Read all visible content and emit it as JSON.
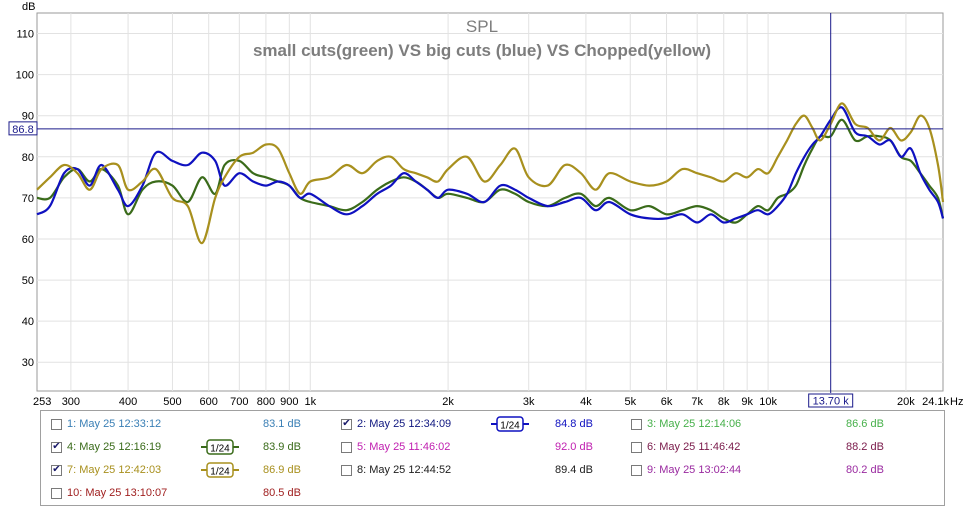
{
  "chart_data": {
    "type": "line",
    "title": "SPL",
    "subtitle": "small cuts(green) VS big cuts (blue) VS Chopped(yellow)",
    "ylabel": "dB",
    "xunit": "Hz",
    "xscale": "log",
    "xlim": [
      253,
      24100
    ],
    "ylim": [
      23,
      115
    ],
    "yticks": [
      "30",
      "40",
      "50",
      "60",
      "70",
      "80",
      "90",
      "100",
      "110"
    ],
    "yticks_values": [
      30,
      40,
      50,
      60,
      70,
      80,
      90,
      100,
      110
    ],
    "xticks": [
      {
        "v": 253,
        "l": "253"
      },
      {
        "v": 300,
        "l": "300"
      },
      {
        "v": 400,
        "l": "400"
      },
      {
        "v": 500,
        "l": "500"
      },
      {
        "v": 600,
        "l": "600"
      },
      {
        "v": 700,
        "l": "700"
      },
      {
        "v": 800,
        "l": "800"
      },
      {
        "v": 900,
        "l": "900"
      },
      {
        "v": 1000,
        "l": "1k"
      },
      {
        "v": 2000,
        "l": "2k"
      },
      {
        "v": 3000,
        "l": "3k"
      },
      {
        "v": 4000,
        "l": "4k"
      },
      {
        "v": 5000,
        "l": "5k"
      },
      {
        "v": 6000,
        "l": "6k"
      },
      {
        "v": 7000,
        "l": "7k"
      },
      {
        "v": 8000,
        "l": "8k"
      },
      {
        "v": 9000,
        "l": "9k"
      },
      {
        "v": 10000,
        "l": "10k"
      },
      {
        "v": 20000,
        "l": "20k"
      },
      {
        "v": 24100,
        "l": "24.1k"
      }
    ],
    "cursor": {
      "x": 13700,
      "x_label": "13.70 k",
      "y": 86.8,
      "y_label": "86.8"
    },
    "grid": true,
    "series": [
      {
        "name": "4: May 25 12:16:19",
        "color": "#3a6b1a",
        "x": [
          253,
          270,
          290,
          310,
          330,
          350,
          380,
          400,
          430,
          460,
          500,
          540,
          580,
          620,
          650,
          700,
          750,
          800,
          850,
          900,
          950,
          1000,
          1100,
          1200,
          1300,
          1400,
          1500,
          1600,
          1700,
          1800,
          1900,
          2000,
          2200,
          2400,
          2600,
          2800,
          3000,
          3300,
          3600,
          3900,
          4200,
          4500,
          5000,
          5500,
          6000,
          6500,
          7000,
          7500,
          8000,
          8500,
          9000,
          9500,
          10000,
          10500,
          11000,
          11500,
          12000,
          12500,
          13000,
          13700,
          14500,
          15500,
          16500,
          17500,
          18500,
          19500,
          20500,
          21500,
          22500,
          23500,
          24100
        ],
        "y": [
          70,
          70,
          75,
          77,
          74,
          77,
          73,
          66,
          72,
          74,
          73,
          69,
          75,
          71,
          78,
          79,
          76,
          75,
          74,
          73,
          70,
          69,
          68,
          67,
          69,
          72,
          74,
          75,
          74,
          72,
          70,
          71,
          70,
          69,
          72,
          71,
          69,
          68,
          70,
          71,
          68,
          70,
          67,
          68,
          66,
          67,
          68,
          67,
          65,
          64,
          66,
          68,
          67,
          70,
          71,
          73,
          78,
          82,
          85,
          85,
          89,
          84,
          85,
          85,
          84,
          80,
          79,
          76,
          73,
          70,
          65
        ],
        "smooth": "1/24"
      },
      {
        "name": "2: May 25 12:34:09",
        "color": "#0f11c0",
        "x": [
          253,
          270,
          290,
          310,
          330,
          350,
          380,
          400,
          430,
          460,
          500,
          540,
          580,
          620,
          650,
          700,
          750,
          800,
          850,
          900,
          950,
          1000,
          1100,
          1200,
          1300,
          1400,
          1500,
          1600,
          1700,
          1800,
          1900,
          2000,
          2200,
          2400,
          2600,
          2800,
          3000,
          3300,
          3600,
          3900,
          4200,
          4500,
          5000,
          5500,
          6000,
          6500,
          7000,
          7500,
          8000,
          8500,
          9000,
          9500,
          10000,
          10500,
          11000,
          11500,
          12000,
          12500,
          13000,
          13700,
          14500,
          15500,
          16500,
          17500,
          18500,
          19500,
          20500,
          21500,
          22500,
          23500,
          24100
        ],
        "y": [
          66,
          68,
          76,
          77,
          73,
          78,
          72,
          68,
          73,
          81,
          79,
          78,
          81,
          79,
          73,
          76,
          74,
          73,
          74,
          73,
          70,
          71,
          68,
          66,
          68,
          71,
          73,
          76,
          74,
          72,
          70,
          72,
          71,
          69,
          73,
          72,
          70,
          68,
          69,
          70,
          67,
          69,
          66,
          65,
          65,
          66,
          64,
          66,
          64,
          65,
          66,
          67,
          66,
          68,
          71,
          76,
          80,
          83,
          85,
          89,
          92,
          86,
          85,
          83,
          84,
          80,
          82,
          76,
          72,
          69,
          65
        ],
        "smooth": "1/24"
      },
      {
        "name": "7: May 25 12:42:03",
        "color": "#a8901e",
        "x": [
          253,
          270,
          290,
          310,
          330,
          350,
          380,
          400,
          430,
          460,
          500,
          540,
          580,
          620,
          650,
          700,
          750,
          800,
          850,
          900,
          950,
          1000,
          1100,
          1200,
          1300,
          1400,
          1500,
          1600,
          1700,
          1800,
          1900,
          2000,
          2200,
          2400,
          2600,
          2800,
          3000,
          3300,
          3600,
          3900,
          4200,
          4500,
          5000,
          5500,
          6000,
          6500,
          7000,
          7500,
          8000,
          8500,
          9000,
          9500,
          10000,
          10500,
          11000,
          11500,
          12000,
          12500,
          13000,
          13700,
          14500,
          15500,
          16500,
          17500,
          18500,
          19500,
          20500,
          21500,
          22500,
          23500,
          24100
        ],
        "y": [
          72,
          75,
          78,
          76,
          72,
          77,
          78,
          72,
          74,
          77,
          70,
          68,
          59,
          70,
          75,
          80,
          81,
          83,
          82,
          76,
          71,
          74,
          75,
          78,
          76,
          79,
          80,
          77,
          76,
          75,
          74,
          77,
          80,
          74,
          78,
          82,
          75,
          73,
          78,
          76,
          72,
          76,
          74,
          73,
          74,
          77,
          76,
          75,
          74,
          76,
          75,
          77,
          76,
          80,
          84,
          88,
          90,
          87,
          84,
          88,
          93,
          88,
          87,
          84,
          87,
          84,
          86,
          90,
          87,
          78,
          69
        ],
        "smooth": "1/24"
      }
    ]
  },
  "legend": {
    "rows": [
      [
        {
          "checked": false,
          "label": "1: May 25 12:33:12",
          "color": "#3a7fb5",
          "smooth": "",
          "value": "83.1 dB",
          "value_color": "#3a7fb5"
        },
        {
          "checked": true,
          "label": "2: May 25 12:34:09",
          "color": "#101880",
          "smooth": "1/24",
          "smooth_color": "#0f11c0",
          "value": "84.8 dB",
          "value_color": "#0f11c0"
        },
        {
          "checked": false,
          "label": "3: May 25 12:14:06",
          "color": "#46b04a",
          "smooth": "",
          "value": "86.6 dB",
          "value_color": "#46b04a"
        }
      ],
      [
        {
          "checked": true,
          "label": "4: May 25 12:16:19",
          "color": "#3a6b1a",
          "smooth": "1/24",
          "smooth_color": "#3a6b1a",
          "value": "83.9 dB",
          "value_color": "#3a6b1a"
        },
        {
          "checked": false,
          "label": "5: May 25 11:46:02",
          "color": "#c020b0",
          "smooth": "",
          "value": "92.0 dB",
          "value_color": "#c020b0"
        },
        {
          "checked": false,
          "label": "6: May 25 11:46:42",
          "color": "#7a1a4a",
          "smooth": "",
          "value": "88.2 dB",
          "value_color": "#7a1a4a"
        }
      ],
      [
        {
          "checked": true,
          "label": "7: May 25 12:42:03",
          "color": "#a8901e",
          "smooth": "1/24",
          "smooth_color": "#a8901e",
          "value": "86.9 dB",
          "value_color": "#a8901e"
        },
        {
          "checked": false,
          "label": "8: May 25 12:44:52",
          "color": "#202020",
          "smooth": "",
          "value": "89.4 dB",
          "value_color": "#202020"
        },
        {
          "checked": false,
          "label": "9: May 25 13:02:44",
          "color": "#9a2aa0",
          "smooth": "",
          "value": "80.2 dB",
          "value_color": "#9a2aa0"
        }
      ],
      [
        {
          "checked": false,
          "label": "10: May 25 13:10:07",
          "color": "#a02020",
          "smooth": "",
          "value": "80.5 dB",
          "value_color": "#a02020"
        }
      ]
    ]
  }
}
